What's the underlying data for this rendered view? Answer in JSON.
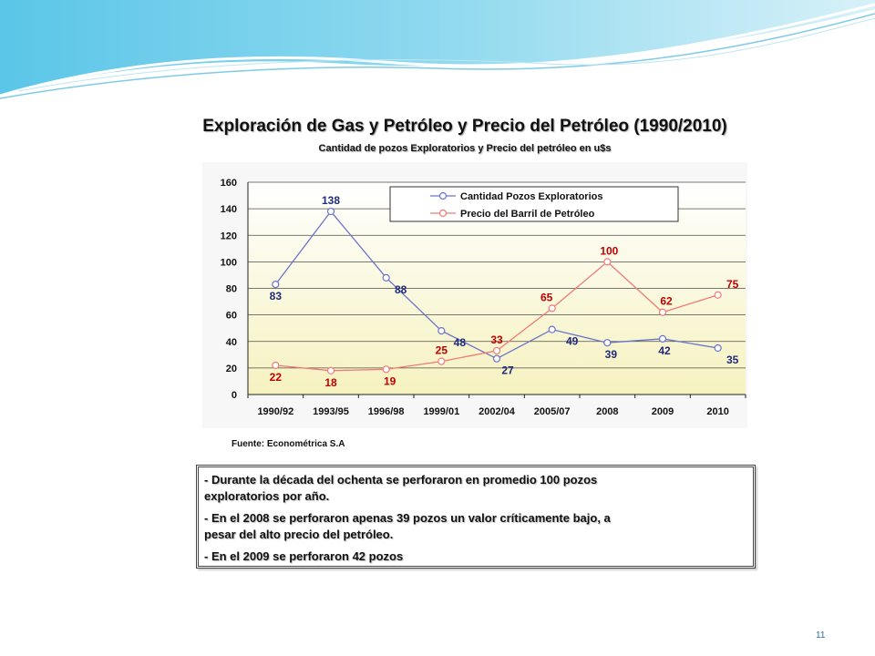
{
  "slide": {
    "page_number": "11"
  },
  "chart_data": {
    "type": "line",
    "title": "Exploración de Gas y Petróleo y Precio del Petróleo (1990/2010)",
    "subtitle": "Cantidad de pozos Exploratorios y Precio del petróleo en u$s",
    "categories": [
      "1990/92",
      "1993/95",
      "1996/98",
      "1999/01",
      "2002/04",
      "2005/07",
      "2008",
      "2009",
      "2010"
    ],
    "series": [
      {
        "name": "Cantidad Pozos Exploratorios",
        "color": "#6b74c8",
        "label_color": "#1f2a7a",
        "values": [
          83,
          138,
          88,
          48,
          27,
          49,
          39,
          42,
          35
        ]
      },
      {
        "name": "Precio del Barril de Petróleo",
        "color": "#ee7b78",
        "label_color": "#c00000",
        "values": [
          22,
          18,
          19,
          25,
          33,
          65,
          100,
          62,
          75
        ]
      }
    ],
    "ylim": [
      0,
      160
    ],
    "yticks": [
      0,
      20,
      40,
      60,
      80,
      100,
      120,
      140,
      160
    ],
    "ytick_labels": [
      "0",
      "20",
      "40",
      "60",
      "80",
      "100",
      "120",
      "140",
      "160"
    ],
    "grid": true,
    "legend_position": "top-right",
    "plot_background": [
      "#ffffff",
      "#f6f2c0"
    ]
  },
  "source_note": "Fuente: Econométrica S.A",
  "notes": [
    {
      "line1": "- Durante la década del ochenta se perforaron en promedio 100 pozos",
      "line2": "exploratorios por año."
    },
    {
      "line1": "- En el 2008 se perforaron apenas 39 pozos un valor críticamente bajo, a",
      "line2": "pesar del alto precio del petróleo."
    },
    {
      "line1": "- En el 2009 se perforaron 42 pozos",
      "line2": ""
    }
  ]
}
